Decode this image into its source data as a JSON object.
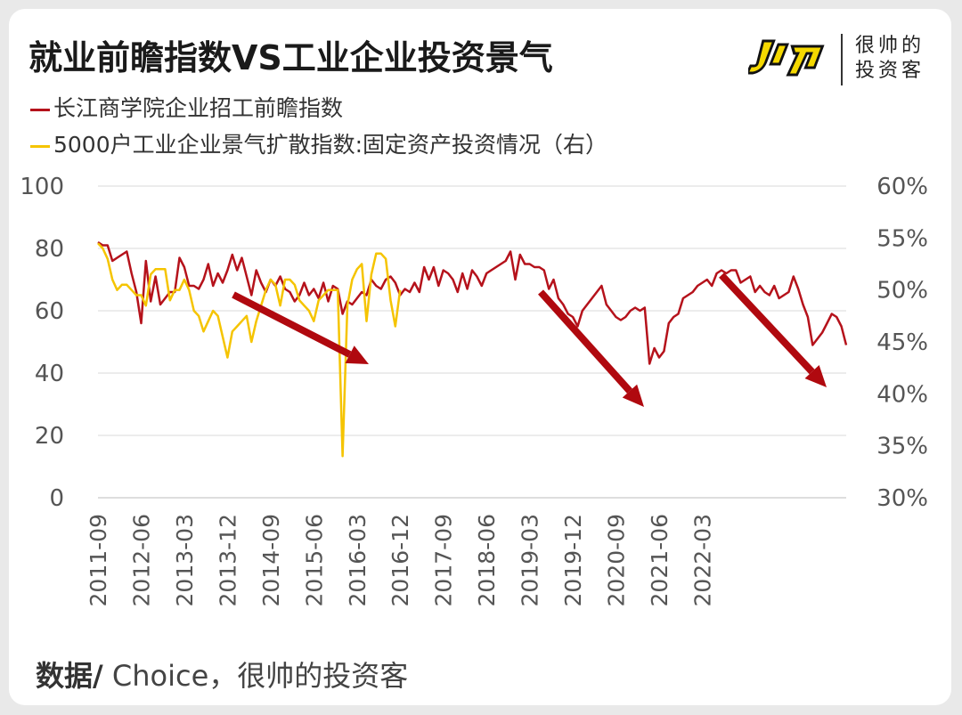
{
  "header": {
    "title": "就业前瞻指数VS工业企业投资景气",
    "logo_text": [
      "很帅的",
      "投资客"
    ]
  },
  "source": {
    "label": "数据/",
    "text": " Choice，很帅的投资客"
  },
  "colors": {
    "series1": "#b5121b",
    "series2": "#f5c400",
    "arrow": "#b0090f",
    "grid": "#d9d9d9",
    "axis_text": "#555555"
  },
  "chart_data": {
    "type": "line",
    "x_tick_labels": [
      "2011-09",
      "2012-06",
      "2013-03",
      "2013-12",
      "2014-09",
      "2015-06",
      "2016-03",
      "2016-12",
      "2017-09",
      "2018-06",
      "2019-03",
      "2019-12",
      "2020-09",
      "2021-06",
      "2022-03"
    ],
    "y_left": {
      "ticks": [
        0,
        20,
        40,
        60,
        80,
        100
      ],
      "ylim": [
        0,
        100
      ]
    },
    "y_right": {
      "ticks": [
        "30%",
        "35%",
        "40%",
        "45%",
        "50%",
        "55%",
        "60%"
      ],
      "ylim": [
        30,
        60
      ],
      "unit": "%"
    },
    "grid": "horizontal",
    "series": [
      {
        "name": "长江商学院企业招工前瞻指数",
        "axis": "left",
        "x_start": "2011-09",
        "frequency": "monthly",
        "values": [
          82,
          81,
          81,
          76,
          77,
          78,
          79,
          72,
          66,
          56,
          76,
          63,
          71,
          62,
          64,
          66,
          66,
          77,
          74,
          68,
          68,
          67,
          70,
          75,
          68,
          72,
          69,
          73,
          78,
          73,
          77,
          71,
          65,
          73,
          69,
          66,
          70,
          68,
          71,
          67,
          66,
          63,
          65,
          69,
          65,
          67,
          64,
          69,
          63,
          68,
          67,
          59,
          63,
          62,
          64,
          66,
          65,
          70,
          68,
          67,
          70,
          71,
          69,
          65,
          67,
          66,
          69,
          66,
          74,
          70,
          74,
          68,
          73,
          72,
          70,
          66,
          72,
          67,
          73,
          71,
          68,
          72,
          73,
          74,
          75,
          76,
          79,
          70,
          78,
          75,
          75,
          74,
          74,
          73,
          67,
          70,
          64,
          62,
          59,
          58,
          55,
          60,
          62,
          64,
          66,
          68,
          62,
          60,
          58,
          57,
          58,
          60,
          61,
          60,
          61,
          43,
          48,
          45,
          47,
          56,
          58,
          59,
          64,
          65,
          66,
          68,
          69,
          70,
          68,
          72,
          73,
          72,
          73,
          73,
          69,
          70,
          71,
          66,
          68,
          66,
          65,
          68,
          64,
          65,
          66,
          71,
          67,
          62,
          58,
          49,
          51,
          53,
          56,
          59,
          58,
          55,
          49
        ]
      },
      {
        "name": "5000户工业企业景气扩散指数:固定资产投资情况（右）",
        "axis": "right",
        "x_start": "2011-09",
        "frequency": "monthly",
        "values": [
          54.5,
          54,
          53,
          51,
          50,
          50.5,
          50.5,
          50,
          49.5,
          49.5,
          48.5,
          51.5,
          52,
          52,
          52,
          49,
          50,
          50,
          51,
          50,
          48,
          47.5,
          46,
          47,
          48,
          47.5,
          45.5,
          43.5,
          46,
          46.5,
          47,
          47.5,
          45,
          47,
          48.5,
          50,
          51,
          50.5,
          48.5,
          51,
          51,
          50.5,
          49,
          48.5,
          48,
          47,
          49,
          49.5,
          50,
          50,
          50,
          34,
          48.5,
          51,
          52,
          52.5,
          47,
          51.5,
          53.5,
          53.5,
          53,
          49,
          46.5,
          50
        ]
      }
    ]
  }
}
